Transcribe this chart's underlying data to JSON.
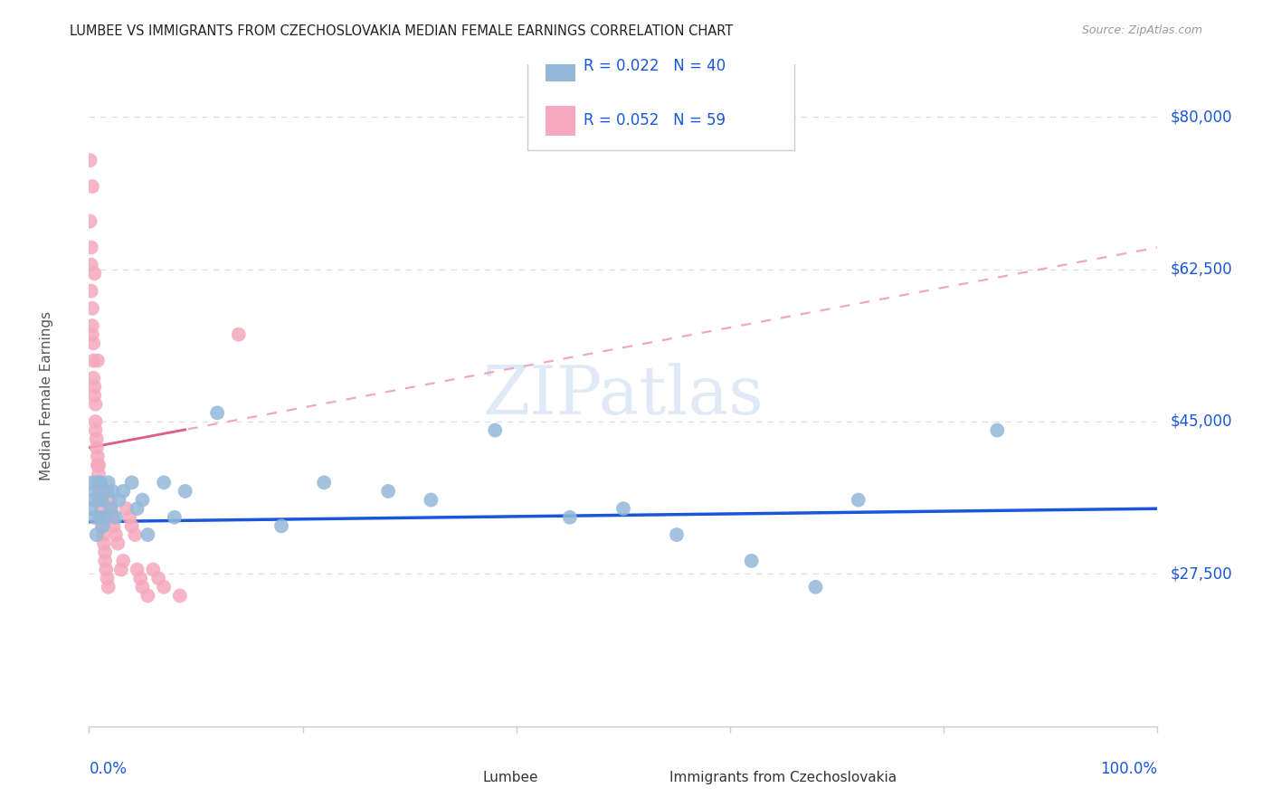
{
  "title": "LUMBEE VS IMMIGRANTS FROM CZECHOSLOVAKIA MEDIAN FEMALE EARNINGS CORRELATION CHART",
  "source": "Source: ZipAtlas.com",
  "ylabel": "Median Female Earnings",
  "ytick_labels": [
    "$27,500",
    "$45,000",
    "$62,500",
    "$80,000"
  ],
  "ytick_values": [
    27500,
    45000,
    62500,
    80000
  ],
  "ymin": 10000,
  "ymax": 86000,
  "xmin": 0.0,
  "xmax": 1.0,
  "legend1_r": "R = 0.022",
  "legend1_n": "N = 40",
  "legend2_r": "R = 0.052",
  "legend2_n": "N = 59",
  "blue_scatter_color": "#93b8d8",
  "pink_scatter_color": "#f5a8be",
  "blue_line_color": "#1a56db",
  "pink_line_solid_color": "#e05c80",
  "pink_line_dash_color": "#f0a8c0",
  "title_color": "#222222",
  "source_color": "#999999",
  "axis_label_color": "#555555",
  "tick_label_color": "#1a56db",
  "grid_color": "#DDDDDD",
  "bg_color": "#FFFFFF",
  "legend_label1": "Lumbee",
  "legend_label2": "Immigrants from Czechoslovakia",
  "lumbee_x": [
    0.002,
    0.003,
    0.004,
    0.005,
    0.006,
    0.007,
    0.008,
    0.009,
    0.01,
    0.011,
    0.012,
    0.013,
    0.015,
    0.017,
    0.018,
    0.02,
    0.022,
    0.025,
    0.028,
    0.032,
    0.04,
    0.045,
    0.05,
    0.055,
    0.07,
    0.08,
    0.09,
    0.12,
    0.18,
    0.22,
    0.28,
    0.32,
    0.38,
    0.45,
    0.5,
    0.55,
    0.62,
    0.68,
    0.72,
    0.85
  ],
  "lumbee_y": [
    35000,
    38000,
    36000,
    34000,
    37000,
    32000,
    38000,
    36000,
    34000,
    38000,
    36000,
    33000,
    34000,
    37000,
    38000,
    35000,
    37000,
    34000,
    36000,
    37000,
    38000,
    35000,
    36000,
    32000,
    38000,
    34000,
    37000,
    46000,
    33000,
    38000,
    37000,
    36000,
    44000,
    34000,
    35000,
    32000,
    29000,
    26000,
    36000,
    44000
  ],
  "czech_x": [
    0.001,
    0.001,
    0.002,
    0.002,
    0.002,
    0.003,
    0.003,
    0.003,
    0.003,
    0.004,
    0.004,
    0.004,
    0.005,
    0.005,
    0.005,
    0.006,
    0.006,
    0.006,
    0.007,
    0.007,
    0.008,
    0.008,
    0.008,
    0.009,
    0.009,
    0.01,
    0.01,
    0.011,
    0.011,
    0.012,
    0.012,
    0.013,
    0.014,
    0.015,
    0.015,
    0.016,
    0.017,
    0.018,
    0.02,
    0.021,
    0.022,
    0.023,
    0.025,
    0.027,
    0.03,
    0.032,
    0.035,
    0.038,
    0.04,
    0.043,
    0.045,
    0.048,
    0.05,
    0.055,
    0.06,
    0.065,
    0.07,
    0.085,
    0.14
  ],
  "czech_y": [
    75000,
    68000,
    65000,
    63000,
    60000,
    72000,
    58000,
    56000,
    55000,
    54000,
    52000,
    50000,
    62000,
    49000,
    48000,
    47000,
    45000,
    44000,
    43000,
    42000,
    41000,
    40000,
    52000,
    40000,
    39000,
    38000,
    37000,
    36000,
    35000,
    34000,
    33000,
    32000,
    31000,
    30000,
    29000,
    28000,
    27000,
    26000,
    36000,
    35000,
    34000,
    33000,
    32000,
    31000,
    28000,
    29000,
    35000,
    34000,
    33000,
    32000,
    28000,
    27000,
    26000,
    25000,
    28000,
    27000,
    26000,
    25000,
    55000
  ]
}
